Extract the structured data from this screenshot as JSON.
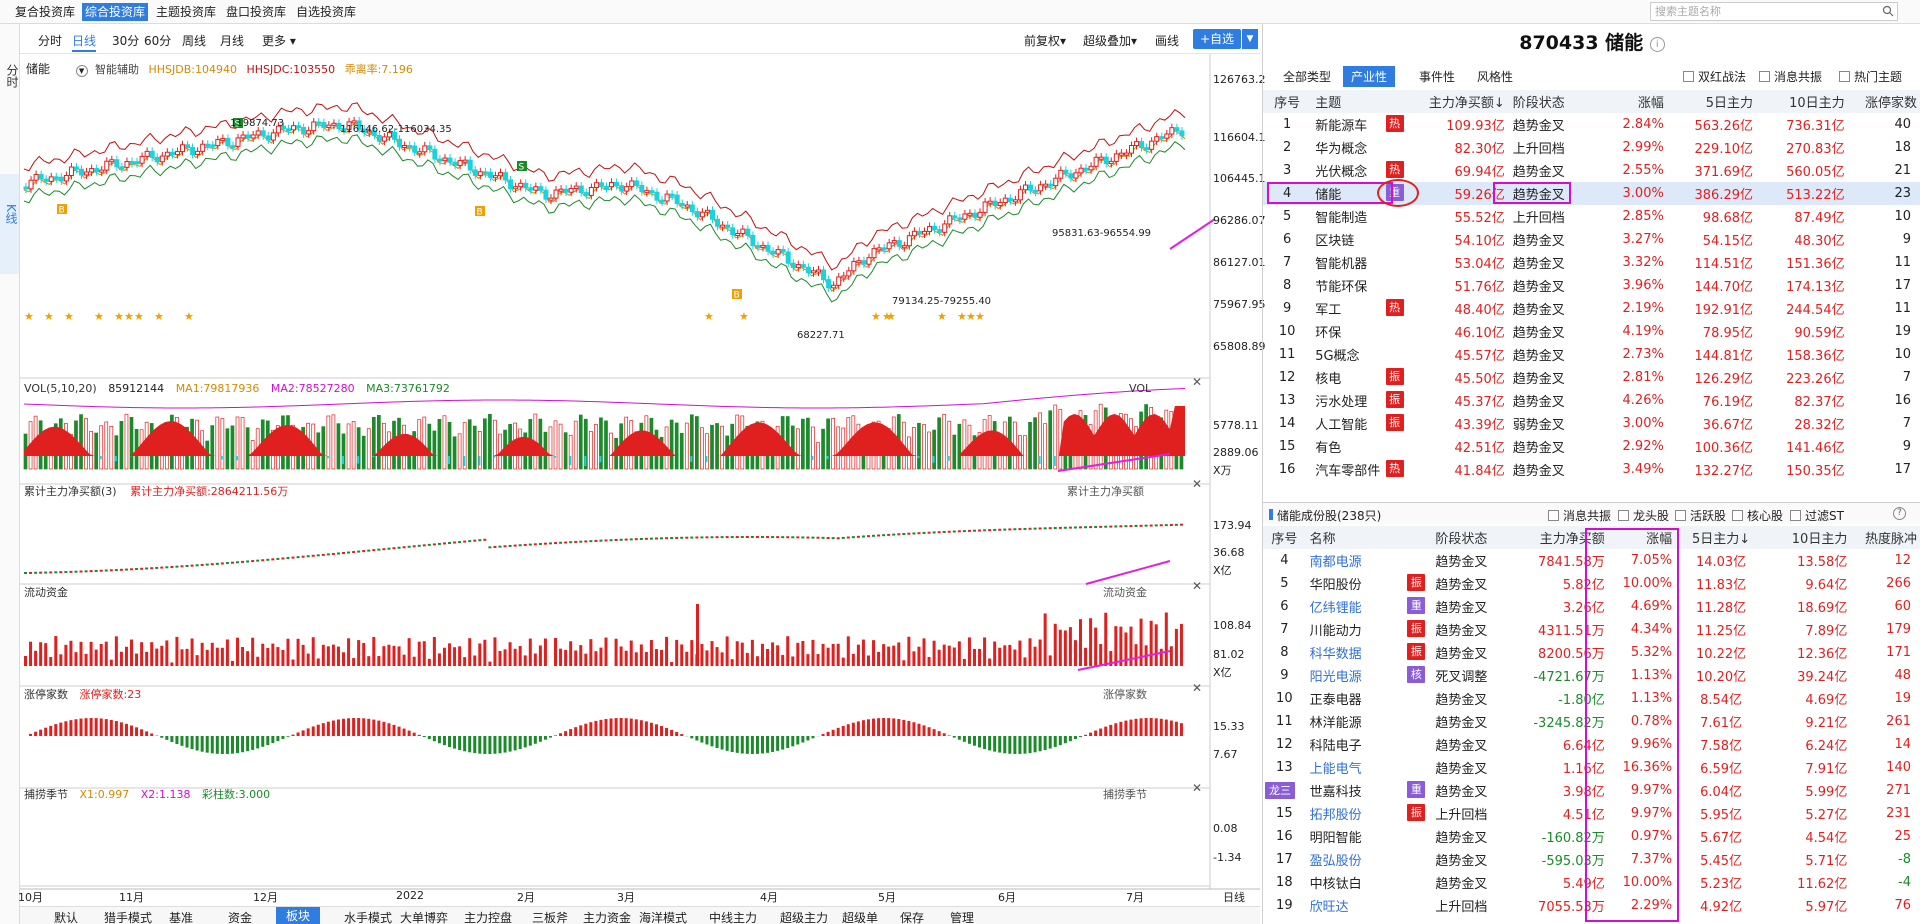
{
  "topnav": {
    "tabs": [
      "复合投资库",
      "综合投资库",
      "主题投资库",
      "盘口投资库",
      "自选投资库"
    ],
    "search_placeholder": "搜索主题名称"
  },
  "leftstrip": {
    "tab1": "分时",
    "tab2": "K线"
  },
  "toolbar": {
    "periods": [
      "分时",
      "日线",
      "30分",
      "60分",
      "周线",
      "月线",
      "更多 ▾"
    ],
    "right": [
      "前复权▾",
      "超级叠加▾",
      "画线"
    ],
    "add_label": "+自选"
  },
  "kline": {
    "name": "储能",
    "indicator": "智能辅助",
    "hhsjdb": "HHSJDB:104940",
    "hhsjdc": "HHSJDC:103550",
    "rate": "乖离率:7.196",
    "yticks": [
      "126763.2",
      "116604.1",
      "106445.1",
      "96286.07",
      "86127.01",
      "75967.95",
      "65808.89"
    ],
    "ann": {
      "a1": "119874.73",
      "a2": "116146.62-116034.35",
      "a3": "95831.63-96554.99",
      "a4": "79134.25-79255.40",
      "a5": "68227.71"
    }
  },
  "vol": {
    "title": "VOL(5,10,20)",
    "value": "85912144",
    "ma1": "MA1:79817936",
    "ma2": "MA2:78527280",
    "ma3": "MA3:73761792",
    "tag": "VOL",
    "yticks": [
      "5778.11",
      "2889.06"
    ],
    "unit": "X万"
  },
  "netbuy": {
    "title": "累计主力净买额(3)",
    "value": "累计主力净买额:2864211.56万",
    "tag": "累计主力净买额",
    "yticks": [
      "173.94",
      "36.68"
    ],
    "unit": "X亿"
  },
  "liquid": {
    "title": "流动资金",
    "tag": "流动资金",
    "yticks": [
      "108.84",
      "81.02"
    ],
    "unit": "X亿"
  },
  "limitup": {
    "title": "涨停家数",
    "value": "涨停家数:23",
    "tag": "涨停家数",
    "yticks": [
      "15.33",
      "7.67"
    ]
  },
  "season": {
    "title": "捕捞季节",
    "x1": "X1:0.997",
    "x2": "X2:1.138",
    "bar": "彩柱数:3.000",
    "tag": "捕捞季节",
    "yticks": [
      "0.08",
      "-1.34"
    ]
  },
  "xaxis": {
    "labels": [
      "10月",
      "11月",
      "12月",
      "2022",
      "2月",
      "3月",
      "4月",
      "5月",
      "6月",
      "7月"
    ],
    "right": "日线"
  },
  "bottomtabs": [
    "默认",
    "猎手模式",
    "基准",
    "资金",
    "板块",
    "水手模式",
    "大单博弈",
    "主力控盘",
    "三板斧",
    "主力资金",
    "海洋模式",
    "中线主力",
    "超级主力",
    "超级单",
    "保存",
    "管理"
  ],
  "right": {
    "title": "870433 储能",
    "subtabs": [
      "全部类型",
      "产业性",
      "事件性",
      "风格性"
    ],
    "checks": [
      "双红战法",
      "消息共振",
      "热门主题"
    ],
    "headers": [
      "序号",
      "主题",
      "主力净买额↓",
      "阶段状态",
      "涨幅",
      "5日主力",
      "10日主力",
      "涨停家数"
    ],
    "rows": [
      {
        "n": "1",
        "name": "新能源车",
        "tag": "热",
        "net": "109.93亿",
        "st": "趋势金叉",
        "chg": "2.84%",
        "d5": "563.26亿",
        "d10": "736.31亿",
        "lim": "40"
      },
      {
        "n": "2",
        "name": "华为概念",
        "tag": "",
        "net": "82.30亿",
        "st": "上升回档",
        "chg": "2.99%",
        "d5": "229.10亿",
        "d10": "270.83亿",
        "lim": "18"
      },
      {
        "n": "3",
        "name": "光伏概念",
        "tag": "热",
        "net": "69.94亿",
        "st": "趋势金叉",
        "chg": "2.55%",
        "d5": "371.69亿",
        "d10": "560.05亿",
        "lim": "21"
      },
      {
        "n": "4",
        "name": "储能",
        "tag": "重",
        "net": "59.26亿",
        "st": "趋势金叉",
        "chg": "3.00%",
        "d5": "386.29亿",
        "d10": "513.22亿",
        "lim": "23"
      },
      {
        "n": "5",
        "name": "智能制造",
        "tag": "",
        "net": "55.52亿",
        "st": "上升回档",
        "chg": "2.85%",
        "d5": "98.68亿",
        "d10": "87.49亿",
        "lim": "10"
      },
      {
        "n": "6",
        "name": "区块链",
        "tag": "",
        "net": "54.10亿",
        "st": "趋势金叉",
        "chg": "3.27%",
        "d5": "54.15亿",
        "d10": "48.30亿",
        "lim": "9"
      },
      {
        "n": "7",
        "name": "智能机器",
        "tag": "",
        "net": "53.04亿",
        "st": "趋势金叉",
        "chg": "3.32%",
        "d5": "114.51亿",
        "d10": "151.36亿",
        "lim": "11"
      },
      {
        "n": "8",
        "name": "节能环保",
        "tag": "",
        "net": "51.76亿",
        "st": "趋势金叉",
        "chg": "3.96%",
        "d5": "144.70亿",
        "d10": "174.13亿",
        "lim": "17"
      },
      {
        "n": "9",
        "name": "军工",
        "tag": "热",
        "net": "48.40亿",
        "st": "趋势金叉",
        "chg": "2.19%",
        "d5": "192.91亿",
        "d10": "244.54亿",
        "lim": "11"
      },
      {
        "n": "10",
        "name": "环保",
        "tag": "",
        "net": "46.10亿",
        "st": "趋势金叉",
        "chg": "4.19%",
        "d5": "78.95亿",
        "d10": "90.59亿",
        "lim": "19"
      },
      {
        "n": "11",
        "name": "5G概念",
        "tag": "",
        "net": "45.57亿",
        "st": "趋势金叉",
        "chg": "2.73%",
        "d5": "144.81亿",
        "d10": "158.36亿",
        "lim": "10"
      },
      {
        "n": "12",
        "name": "核电",
        "tag": "振",
        "net": "45.50亿",
        "st": "趋势金叉",
        "chg": "2.81%",
        "d5": "126.29亿",
        "d10": "223.26亿",
        "lim": "7"
      },
      {
        "n": "13",
        "name": "污水处理",
        "tag": "振",
        "net": "45.37亿",
        "st": "趋势金叉",
        "chg": "4.26%",
        "d5": "76.19亿",
        "d10": "82.37亿",
        "lim": "16"
      },
      {
        "n": "14",
        "name": "人工智能",
        "tag": "振",
        "net": "43.39亿",
        "st": "弱势金叉",
        "chg": "3.00%",
        "d5": "36.67亿",
        "d10": "28.32亿",
        "lim": "7"
      },
      {
        "n": "15",
        "name": "有色",
        "tag": "",
        "net": "42.51亿",
        "st": "趋势金叉",
        "chg": "2.92%",
        "d5": "100.36亿",
        "d10": "141.46亿",
        "lim": "9"
      },
      {
        "n": "16",
        "name": "汽车零部件",
        "tag": "热",
        "net": "41.84亿",
        "st": "趋势金叉",
        "chg": "3.49%",
        "d5": "132.27亿",
        "d10": "150.35亿",
        "lim": "17"
      }
    ],
    "sec2": {
      "title": "储能成份股(238只)",
      "checks": [
        "消息共振",
        "龙头股",
        "活跃股",
        "核心股",
        "过滤ST"
      ],
      "headers": [
        "序号",
        "名称",
        "阶段状态",
        "主力净买额",
        "涨幅",
        "5日主力↓",
        "10日主力",
        "热度脉冲"
      ],
      "rows": [
        {
          "n": "4",
          "name": "南都电源",
          "tag": "",
          "blue": true,
          "st": "趋势金叉",
          "net": "7841.58万",
          "chg": "7.05%",
          "d5": "14.03亿",
          "d10": "13.58亿",
          "heat": "12"
        },
        {
          "n": "5",
          "name": "华阳股份",
          "tag": "振",
          "blue": false,
          "st": "趋势金叉",
          "net": "5.82亿",
          "chg": "10.00%",
          "d5": "11.83亿",
          "d10": "9.64亿",
          "heat": "266"
        },
        {
          "n": "6",
          "name": "亿纬锂能",
          "tag": "重",
          "blue": true,
          "st": "趋势金叉",
          "net": "3.26亿",
          "chg": "4.69%",
          "d5": "11.28亿",
          "d10": "18.69亿",
          "heat": "60"
        },
        {
          "n": "7",
          "name": "川能动力",
          "tag": "振",
          "blue": false,
          "st": "趋势金叉",
          "net": "4311.51万",
          "chg": "4.34%",
          "d5": "11.25亿",
          "d10": "7.89亿",
          "heat": "179"
        },
        {
          "n": "8",
          "name": "科华数据",
          "tag": "振",
          "blue": true,
          "st": "趋势金叉",
          "net": "8200.56万",
          "chg": "5.32%",
          "d5": "10.22亿",
          "d10": "12.36亿",
          "heat": "171"
        },
        {
          "n": "9",
          "name": "阳光电源",
          "tag": "核",
          "blue": true,
          "st": "死叉调整",
          "net": "-4721.67万",
          "chg": "1.13%",
          "d5": "10.20亿",
          "d10": "39.24亿",
          "heat": "48"
        },
        {
          "n": "10",
          "name": "正泰电器",
          "tag": "",
          "blue": false,
          "st": "趋势金叉",
          "net": "-1.80亿",
          "chg": "1.13%",
          "d5": "8.54亿",
          "d10": "4.69亿",
          "heat": "19"
        },
        {
          "n": "11",
          "name": "林洋能源",
          "tag": "",
          "blue": false,
          "st": "趋势金叉",
          "net": "-3245.82万",
          "chg": "0.78%",
          "d5": "7.61亿",
          "d10": "9.21亿",
          "heat": "261"
        },
        {
          "n": "12",
          "name": "科陆电子",
          "tag": "",
          "blue": false,
          "st": "趋势金叉",
          "net": "6.64亿",
          "chg": "9.96%",
          "d5": "7.58亿",
          "d10": "6.24亿",
          "heat": "14"
        },
        {
          "n": "13",
          "name": "上能电气",
          "tag": "",
          "blue": true,
          "st": "趋势金叉",
          "net": "1.16亿",
          "chg": "16.36%",
          "d5": "6.59亿",
          "d10": "7.91亿",
          "heat": "140"
        },
        {
          "n": "14",
          "name": "世嘉科技",
          "tag": "重",
          "blue": false,
          "long": "龙三",
          "st": "趋势金叉",
          "net": "3.98亿",
          "chg": "9.97%",
          "d5": "6.04亿",
          "d10": "5.99亿",
          "heat": "271"
        },
        {
          "n": "15",
          "name": "拓邦股份",
          "tag": "振",
          "blue": true,
          "st": "上升回档",
          "net": "4.51亿",
          "chg": "9.97%",
          "d5": "5.95亿",
          "d10": "5.27亿",
          "heat": "231"
        },
        {
          "n": "16",
          "name": "明阳智能",
          "tag": "",
          "blue": false,
          "st": "趋势金叉",
          "net": "-160.82万",
          "chg": "0.97%",
          "d5": "5.67亿",
          "d10": "4.54亿",
          "heat": "25"
        },
        {
          "n": "17",
          "name": "盈弘股份",
          "tag": "",
          "blue": true,
          "st": "趋势金叉",
          "net": "-595.03万",
          "chg": "7.37%",
          "d5": "5.45亿",
          "d10": "5.71亿",
          "heat": "-8"
        },
        {
          "n": "18",
          "name": "中核钛白",
          "tag": "",
          "blue": false,
          "st": "趋势金叉",
          "net": "5.49亿",
          "chg": "10.00%",
          "d5": "5.23亿",
          "d10": "11.62亿",
          "heat": "-4"
        },
        {
          "n": "19",
          "name": "欣旺达",
          "tag": "",
          "blue": true,
          "st": "上升回档",
          "net": "7055.53万",
          "chg": "2.29%",
          "d5": "4.92亿",
          "d10": "5.97亿",
          "heat": "76"
        }
      ]
    }
  },
  "colors": {
    "accent": "#2f7de1",
    "up": "#e0201f",
    "down": "#1b8a2a",
    "cyan": "#19d3e0",
    "magenta": "#e020e0"
  }
}
